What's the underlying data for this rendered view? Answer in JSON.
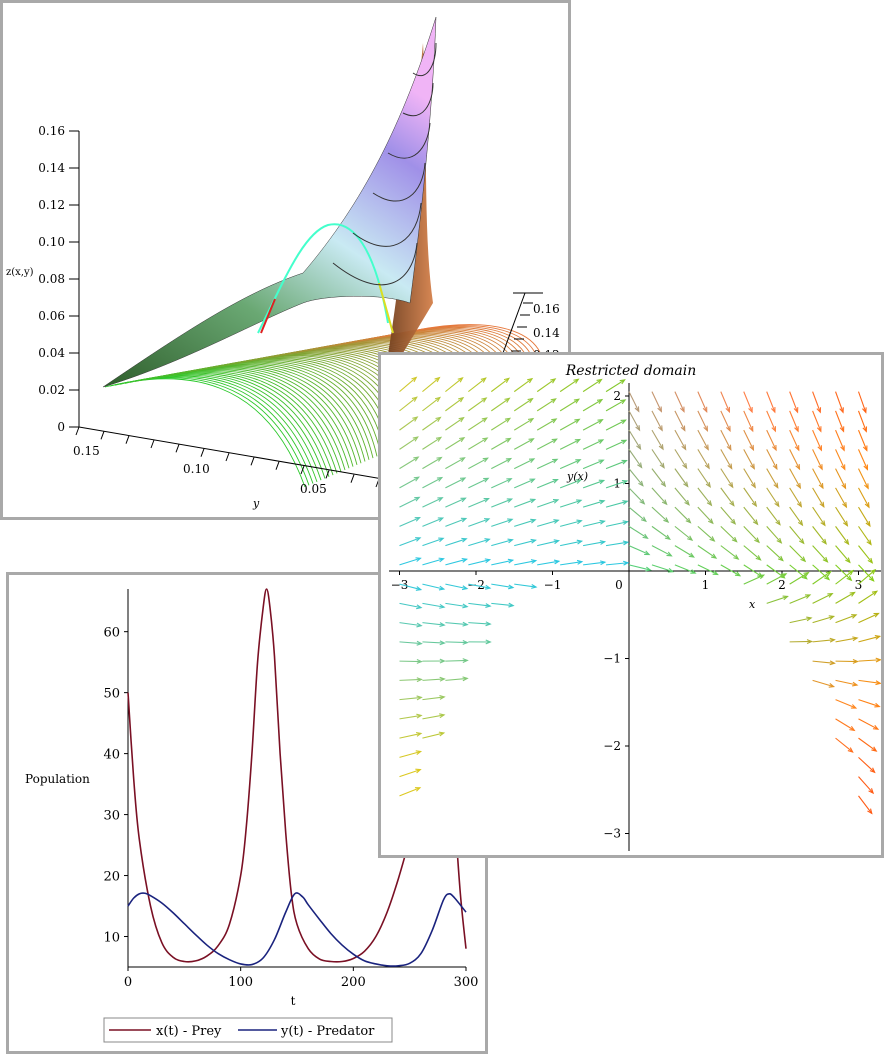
{
  "colors": {
    "prey": "#7a1024",
    "predator": "#1a237e",
    "axis": "#000000",
    "panel_border": "#a9a9a9"
  },
  "surface_plot": {
    "zlabel": "z(x,y)",
    "ylabel": "y",
    "z_ticks": [
      "0",
      "0.02",
      "0.04",
      "0.06",
      "0.08",
      "0.10",
      "0.12",
      "0.14",
      "0.16"
    ],
    "y_ticks": [
      "0.15",
      "0.10",
      "0.05"
    ],
    "back_z_ticks": [
      "0.16",
      "0.14",
      "0.12"
    ]
  },
  "field_plot": {
    "title": "Restricted domain",
    "xlabel": "x",
    "ylabel": "y(x)",
    "x_ticks": [
      "−3",
      "−2",
      "−1",
      "0",
      "1",
      "2",
      "3"
    ],
    "y_ticks": [
      "2",
      "1",
      "−1",
      "−2",
      "−3"
    ]
  },
  "chart_data": [
    {
      "type": "line",
      "xlabel": "t",
      "ylabel": "Population",
      "xlim": [
        0,
        300
      ],
      "ylim": [
        5,
        67
      ],
      "x_ticks": [
        "0",
        "100",
        "200",
        "300"
      ],
      "y_ticks": [
        "10",
        "20",
        "30",
        "40",
        "50",
        "60"
      ],
      "legend": "bottom",
      "series": [
        {
          "name": "x(t) - Prey",
          "x": [
            0,
            5,
            10,
            20,
            30,
            40,
            50,
            60,
            70,
            80,
            90,
            100,
            105,
            110,
            115,
            120,
            123,
            126,
            130,
            135,
            140,
            145,
            150,
            160,
            170,
            180,
            190,
            200,
            210,
            220,
            230,
            240,
            250,
            260,
            270,
            280,
            285,
            290,
            295,
            300
          ],
          "values": [
            50,
            36,
            26,
            15,
            9,
            6.6,
            5.9,
            6,
            6.8,
            8.5,
            12,
            20,
            28,
            40,
            55,
            64,
            67,
            64,
            56,
            40,
            27,
            17,
            12,
            8,
            6.3,
            5.9,
            5.9,
            6.4,
            7.6,
            10,
            14,
            19.5,
            26,
            33,
            40,
            46,
            44,
            30,
            17,
            8
          ]
        },
        {
          "name": "y(t) - Predator",
          "x": [
            0,
            5,
            10,
            15,
            20,
            30,
            40,
            50,
            60,
            70,
            80,
            90,
            100,
            110,
            120,
            130,
            140,
            148,
            155,
            160,
            170,
            180,
            190,
            200,
            210,
            220,
            230,
            240,
            250,
            260,
            270,
            280,
            285,
            290,
            300
          ],
          "values": [
            15,
            16.3,
            17,
            17.1,
            16.7,
            15.5,
            13.9,
            12.1,
            10.3,
            8.6,
            7.2,
            6.2,
            5.5,
            5.4,
            6.5,
            9.5,
            14,
            17,
            16.5,
            15.2,
            12.8,
            10.5,
            8.6,
            7.1,
            6,
            5.5,
            5.2,
            5.2,
            5.6,
            7.2,
            11,
            16,
            17,
            16.3,
            14
          ]
        }
      ]
    }
  ]
}
